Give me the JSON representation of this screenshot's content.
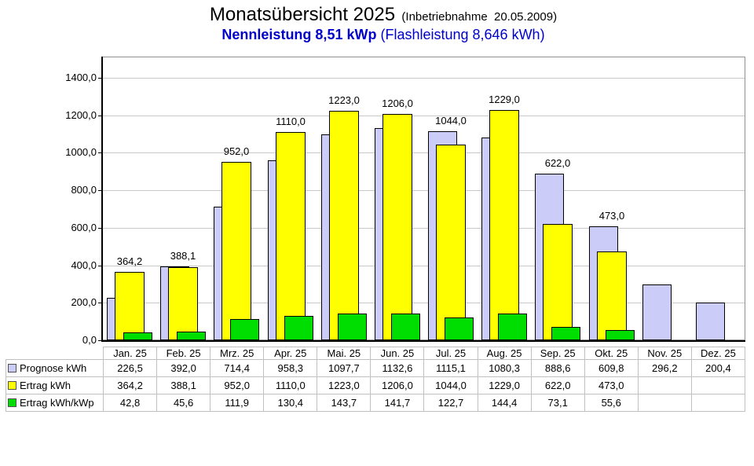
{
  "title": {
    "main": "Monatsübersicht 2025",
    "main_suffix": "(Inbetriebnahme  20.05.2009)",
    "sub_bold": "Nennleistung 8,51 kWp",
    "sub_rest": " (Flashleistung 8,646 kWh)"
  },
  "colors": {
    "prognose": "#CCCCF8",
    "ertrag": "#FFFF00",
    "ertrag_kwp": "#00DD00",
    "bar_border": "#000000",
    "grid": "#C8C8C8",
    "frame": "#909090",
    "axis": "#000000",
    "subtitle_blue": "#0000CC",
    "table_border": "#C0C0C0"
  },
  "chart_data": {
    "type": "bar",
    "title": "Monatsübersicht 2025 (Inbetriebnahme 20.05.2009)",
    "subtitle": "Nennleistung 8,51 kWp (Flashleistung 8,646 kWh)",
    "categories": [
      "Jan. 25",
      "Feb. 25",
      "Mrz. 25",
      "Apr. 25",
      "Mai. 25",
      "Jun. 25",
      "Jul. 25",
      "Aug. 25",
      "Sep. 25",
      "Okt. 25",
      "Nov. 25",
      "Dez. 25"
    ],
    "series": [
      {
        "name": "Prognose kWh",
        "color_key": "prognose",
        "values": [
          226.5,
          392.0,
          714.4,
          958.3,
          1097.7,
          1132.6,
          1115.1,
          1080.3,
          888.6,
          609.8,
          296.2,
          200.4
        ],
        "display": [
          "226,5",
          "392,0",
          "714,4",
          "958,3",
          "1097,7",
          "1132,6",
          "1115,1",
          "1080,3",
          "888,6",
          "609,8",
          "296,2",
          "200,4"
        ]
      },
      {
        "name": "Ertrag kWh",
        "color_key": "ertrag",
        "values": [
          364.2,
          388.1,
          952.0,
          1110.0,
          1223.0,
          1206.0,
          1044.0,
          1229.0,
          622.0,
          473.0,
          null,
          null
        ],
        "display": [
          "364,2",
          "388,1",
          "952,0",
          "1110,0",
          "1223,0",
          "1206,0",
          "1044,0",
          "1229,0",
          "622,0",
          "473,0",
          "",
          ""
        ]
      },
      {
        "name": "Ertrag kWh/kWp",
        "color_key": "ertrag_kwp",
        "values": [
          42.8,
          45.6,
          111.9,
          130.4,
          143.7,
          141.7,
          122.7,
          144.4,
          73.1,
          55.6,
          null,
          null
        ],
        "display": [
          "42,8",
          "45,6",
          "111,9",
          "130,4",
          "143,7",
          "141,7",
          "122,7",
          "144,4",
          "73,1",
          "55,6",
          "",
          ""
        ]
      }
    ],
    "bar_value_labels_source": "Ertrag kWh",
    "ylim": [
      0,
      1400
    ],
    "ytick_step": 200,
    "ytick_labels": [
      "0,0",
      "200,0",
      "400,0",
      "600,0",
      "800,0",
      "1000,0",
      "1200,0",
      "1400,0"
    ],
    "grid": true,
    "legend_position": "table-left"
  }
}
